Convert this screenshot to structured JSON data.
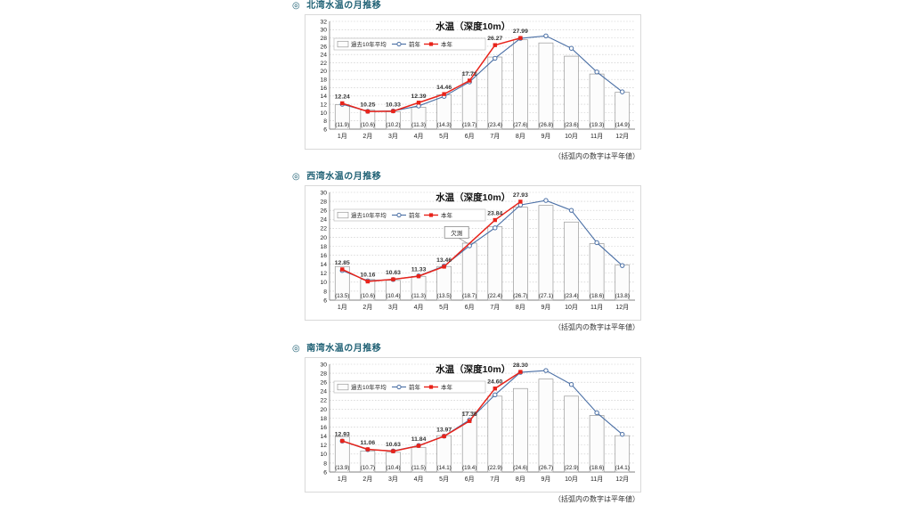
{
  "page": {
    "background": "#ffffff",
    "footnote": "（括弧内の数字は平年値）"
  },
  "style": {
    "section_title_color": "#1d5f73",
    "prev_year_color": "#4a6fa5",
    "this_year_color": "#e8231a",
    "bar_fill": "#fcfcfc",
    "bar_border": "#999999",
    "grid_color": "#c8c8c8",
    "axis_color": "#808080",
    "label_color": "#222222"
  },
  "chart_data": [
    {
      "type": "bar",
      "bullet": "◎",
      "section_title": "北湾水温の月推移",
      "title": "水温（深度10m）",
      "categories": [
        "1月",
        "2月",
        "3月",
        "4月",
        "5月",
        "6月",
        "7月",
        "8月",
        "9月",
        "10月",
        "11月",
        "12月"
      ],
      "ylim": [
        6,
        32
      ],
      "ytick_step": 2,
      "grid": true,
      "legend_position": "top-left",
      "series": [
        {
          "name": "過去10年平均",
          "type": "bar",
          "values": [
            11.9,
            10.6,
            10.2,
            11.3,
            14.3,
            19.7,
            23.4,
            27.6,
            26.8,
            23.6,
            19.3,
            14.9
          ]
        },
        {
          "name": "前年",
          "type": "line",
          "color": "#4a6fa5",
          "values": [
            12.0,
            10.3,
            10.4,
            11.6,
            13.9,
            17.4,
            23.1,
            27.9,
            28.5,
            25.5,
            19.8,
            15.0
          ]
        },
        {
          "name": "本年",
          "type": "line",
          "color": "#e8231a",
          "values": [
            12.24,
            10.25,
            10.33,
            12.39,
            14.46,
            17.71,
            26.27,
            27.99,
            null,
            null,
            null,
            null
          ]
        }
      ],
      "value_labels_series": "本年",
      "footnote": "（括弧内の数字は平年値）",
      "callout": null
    },
    {
      "type": "bar",
      "bullet": "◎",
      "section_title": "西湾水温の月推移",
      "title": "水温（深度10m）",
      "categories": [
        "1月",
        "2月",
        "3月",
        "4月",
        "5月",
        "6月",
        "7月",
        "8月",
        "9月",
        "10月",
        "11月",
        "12月"
      ],
      "ylim": [
        6,
        30
      ],
      "ytick_step": 2,
      "grid": true,
      "legend_position": "top-left",
      "series": [
        {
          "name": "過去10年平均",
          "type": "bar",
          "values": [
            13.5,
            10.6,
            10.4,
            11.3,
            13.5,
            18.7,
            22.4,
            26.7,
            27.1,
            23.4,
            18.6,
            13.8
          ]
        },
        {
          "name": "前年",
          "type": "line",
          "color": "#4a6fa5",
          "values": [
            12.6,
            10.3,
            10.6,
            11.4,
            13.6,
            18.1,
            22.1,
            27.2,
            28.2,
            26.0,
            18.8,
            13.7
          ]
        },
        {
          "name": "本年",
          "type": "line",
          "color": "#e8231a",
          "values": [
            12.85,
            10.16,
            10.63,
            11.33,
            13.46,
            null,
            23.84,
            27.93,
            null,
            null,
            null,
            null
          ]
        }
      ],
      "value_labels_series": "本年",
      "footnote": "（括弧内の数字は平年値）",
      "callout": {
        "label": "欠測",
        "month_index": 5
      }
    },
    {
      "type": "bar",
      "bullet": "◎",
      "section_title": "南湾水温の月推移",
      "title": "水温（深度10m）",
      "categories": [
        "1月",
        "2月",
        "3月",
        "4月",
        "5月",
        "6月",
        "7月",
        "8月",
        "9月",
        "10月",
        "11月",
        "12月"
      ],
      "ylim": [
        6,
        30
      ],
      "ytick_step": 2,
      "grid": true,
      "legend_position": "top-left",
      "series": [
        {
          "name": "過去10年平均",
          "type": "bar",
          "values": [
            13.9,
            10.7,
            10.4,
            11.5,
            14.1,
            19.4,
            22.9,
            24.6,
            26.7,
            22.9,
            18.6,
            14.1
          ]
        },
        {
          "name": "前年",
          "type": "line",
          "color": "#4a6fa5",
          "values": [
            12.9,
            11.0,
            10.7,
            11.9,
            14.0,
            17.6,
            23.2,
            28.2,
            28.6,
            25.5,
            19.2,
            14.4
          ]
        },
        {
          "name": "本年",
          "type": "line",
          "color": "#e8231a",
          "values": [
            12.93,
            11.06,
            10.63,
            11.84,
            13.97,
            17.36,
            24.6,
            28.3,
            null,
            null,
            null,
            null
          ]
        }
      ],
      "value_labels_series": "本年",
      "footnote": "（括弧内の数字は平年値）",
      "callout": null
    }
  ]
}
